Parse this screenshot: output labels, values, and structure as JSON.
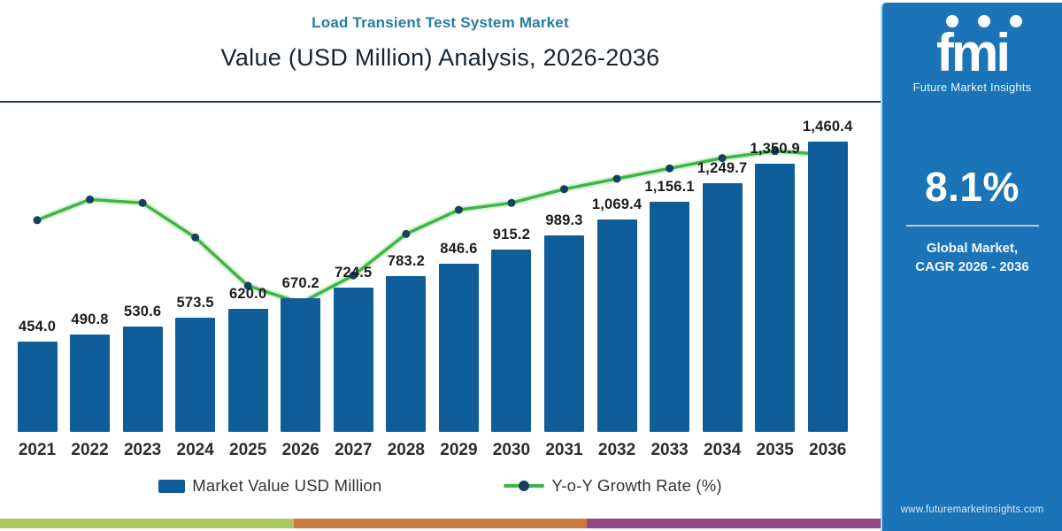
{
  "header": {
    "title": "Load Transient Test System Market",
    "subtitle": "Value (USD Million) Analysis, 2026-2036"
  },
  "chart_data": {
    "type": "bar",
    "title": "Load Transient Test System Market",
    "subtitle": "Value (USD Million) Analysis, 2026-2036",
    "xlabel": "",
    "ylabel": "",
    "categories": [
      "2021",
      "2022",
      "2023",
      "2024",
      "2025",
      "2026",
      "2027",
      "2028",
      "2029",
      "2030",
      "2031",
      "2032",
      "2033",
      "2034",
      "2035",
      "2036"
    ],
    "series": [
      {
        "name": "Market Value USD Million",
        "kind": "bar",
        "color": "#0f5d99",
        "values": [
          454.0,
          490.8,
          530.6,
          573.5,
          620.0,
          670.2,
          724.5,
          783.2,
          846.6,
          915.2,
          989.3,
          1069.4,
          1156.1,
          1249.7,
          1350.9,
          1460.4
        ],
        "labels": [
          "454.0",
          "490.8",
          "530.6",
          "573.5",
          "620.0",
          "670.2",
          "724.5",
          "783.2",
          "846.6",
          "915.2",
          "989.3",
          "1,069.4",
          "1,156.1",
          "1,249.7",
          "1,350.9",
          "1,460.4"
        ]
      },
      {
        "name": "Y-o-Y Growth Rate (%)",
        "kind": "line",
        "color": "#3eb549",
        "marker_color": "#16405f",
        "estimated": true,
        "values": [
          7.8,
          8.4,
          8.3,
          7.3,
          5.9,
          5.4,
          6.2,
          7.4,
          8.1,
          8.3,
          8.7,
          9.0,
          9.3,
          9.6,
          9.8,
          9.7
        ]
      }
    ],
    "value_axis": {
      "min": 0,
      "max": 1460.4,
      "shown": false
    },
    "growth_axis": {
      "min": 5.0,
      "max": 10.0,
      "shown": false
    },
    "grid": false,
    "legend_position": "bottom"
  },
  "sidebar": {
    "logo_text": "fmi",
    "logo_subtext": "Future Market Insights",
    "cagr_value": "8.1%",
    "caption_line1": "Global Market,",
    "caption_line2": "CAGR 2026 - 2036",
    "website": "www.futuremarketinsights.com",
    "bg_color": "#1b74b8"
  },
  "footer_stripes": {
    "colors": [
      "#a6c961",
      "#cb7b40",
      "#93478a"
    ]
  }
}
